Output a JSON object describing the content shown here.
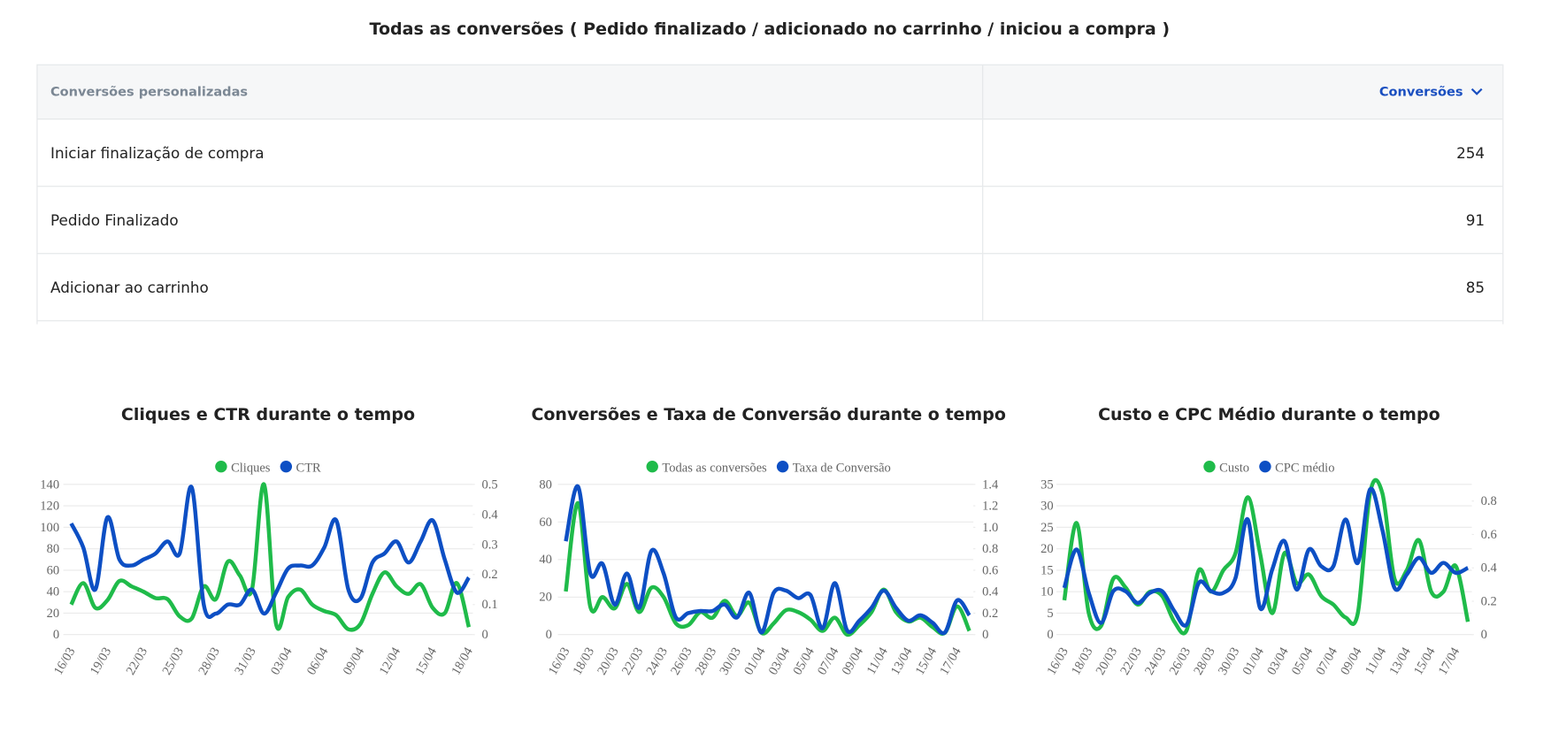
{
  "title": "Todas as conversões ( Pedido finalizado / adicionado no carrinho / iniciou a compra )",
  "table": {
    "columns": [
      "Conversões personalizadas",
      "Conversões"
    ],
    "rows": [
      [
        "Iniciar finalização de compra",
        254
      ],
      [
        "Pedido Finalizado",
        91
      ],
      [
        "Adicionar ao carrinho",
        85
      ]
    ]
  },
  "chart_data": [
    {
      "type": "line",
      "title": "Cliques e CTR durante o tempo",
      "grid": true,
      "legend": "top",
      "categories": [
        "16/03",
        null,
        null,
        "19/03",
        null,
        null,
        "22/03",
        null,
        null,
        "25/03",
        null,
        null,
        "28/03",
        null,
        null,
        "31/03",
        null,
        null,
        "03/04",
        null,
        null,
        "06/04",
        null,
        null,
        "09/04",
        null,
        null,
        "12/04",
        null,
        null,
        "15/04",
        null,
        null,
        "18/04"
      ],
      "ylim": [
        0,
        140
      ],
      "yticks": [
        0,
        20,
        40,
        60,
        80,
        100,
        120,
        140
      ],
      "y2lim": [
        0,
        0.5
      ],
      "y2ticks": [
        0,
        0.1,
        0.2,
        0.3,
        0.4,
        0.5
      ],
      "series": [
        {
          "name": "Cliques",
          "color": "#1fbb4a",
          "values": [
            28,
            48,
            25,
            32,
            50,
            45,
            40,
            34,
            33,
            17,
            15,
            45,
            33,
            68,
            55,
            42,
            140,
            10,
            35,
            42,
            28,
            22,
            18,
            5,
            10,
            38,
            58,
            45,
            38,
            47,
            25,
            20,
            48,
            7
          ]
        },
        {
          "name": "CTR",
          "color": "#0d4fc4",
          "axis": "y2",
          "values": [
            0.37,
            0.29,
            0.15,
            0.39,
            0.25,
            0.23,
            0.25,
            0.27,
            0.31,
            0.27,
            0.49,
            0.1,
            0.07,
            0.1,
            0.1,
            0.15,
            0.07,
            0.14,
            0.22,
            0.23,
            0.23,
            0.29,
            0.38,
            0.15,
            0.12,
            0.24,
            0.27,
            0.31,
            0.24,
            0.31,
            0.38,
            0.25,
            0.14,
            0.19
          ]
        }
      ]
    },
    {
      "type": "line",
      "title": "Conversões e Taxa de Conversão durante o tempo",
      "grid": true,
      "legend": "top",
      "categories": [
        "16/03",
        null,
        "18/03",
        null,
        "20/03",
        null,
        "22/03",
        null,
        "24/03",
        null,
        "26/03",
        null,
        "28/03",
        null,
        "30/03",
        null,
        "01/04",
        null,
        "03/04",
        null,
        "05/04",
        null,
        "07/04",
        null,
        "09/04",
        null,
        "11/04",
        null,
        "13/04",
        null,
        "15/04",
        null,
        "17/04",
        null
      ],
      "ylim": [
        0,
        80
      ],
      "yticks": [
        0,
        20,
        40,
        60,
        80
      ],
      "y2lim": [
        0,
        1.4
      ],
      "y2ticks": [
        0,
        0.2,
        0.4,
        0.6,
        0.8,
        {
          "value": 1,
          "label": "1.0"
        },
        1.2,
        1.4
      ],
      "series": [
        {
          "name": "Todas as conversões",
          "color": "#1fbb4a",
          "values": [
            23,
            70,
            15,
            20,
            14,
            27,
            12,
            25,
            20,
            6,
            5,
            12,
            9,
            18,
            10,
            17,
            1,
            6,
            13,
            12,
            8,
            2,
            9,
            0,
            5,
            12,
            24,
            12,
            7,
            9,
            4,
            1,
            15,
            2
          ]
        },
        {
          "name": "Taxa de Conversão",
          "color": "#0d4fc4",
          "axis": "y2",
          "values": [
            0.87,
            1.38,
            0.57,
            0.66,
            0.28,
            0.57,
            0.25,
            0.78,
            0.57,
            0.16,
            0.2,
            0.22,
            0.22,
            0.28,
            0.16,
            0.39,
            0.02,
            0.39,
            0.41,
            0.34,
            0.37,
            0.06,
            0.48,
            0.04,
            0.13,
            0.25,
            0.41,
            0.25,
            0.13,
            0.18,
            0.11,
            0.02,
            0.32,
            0.18
          ]
        }
      ]
    },
    {
      "type": "line",
      "title": "Custo e CPC Médio durante o tempo",
      "grid": true,
      "legend": "top",
      "categories": [
        "16/03",
        null,
        "18/03",
        null,
        "20/03",
        null,
        "22/03",
        null,
        "24/03",
        null,
        "26/03",
        null,
        "28/03",
        null,
        "30/03",
        null,
        "01/04",
        null,
        "03/04",
        null,
        "05/04",
        null,
        "07/04",
        null,
        "09/04",
        null,
        "11/04",
        null,
        "13/04",
        null,
        "15/04",
        null,
        "17/04",
        null
      ],
      "ylim": [
        0,
        35
      ],
      "yticks": [
        0,
        5,
        10,
        15,
        20,
        25,
        30,
        35
      ],
      "y2lim": [
        0,
        0.9
      ],
      "y2ticks": [
        0,
        0.2,
        0.4,
        0.6,
        0.8
      ],
      "series": [
        {
          "name": "Custo",
          "color": "#1fbb4a",
          "values": [
            8,
            26,
            5,
            2,
            13,
            11,
            7,
            10,
            9,
            3,
            1,
            15,
            10,
            15,
            19,
            32,
            19,
            5,
            19,
            12,
            14,
            9,
            7,
            4,
            5,
            33,
            33,
            13,
            15,
            22,
            10,
            10,
            16,
            3
          ]
        },
        {
          "name": "CPC médio",
          "color": "#0d4fc4",
          "axis": "y2",
          "values": [
            0.28,
            0.51,
            0.25,
            0.07,
            0.26,
            0.26,
            0.19,
            0.25,
            0.26,
            0.14,
            0.06,
            0.31,
            0.26,
            0.25,
            0.34,
            0.69,
            0.16,
            0.39,
            0.56,
            0.27,
            0.51,
            0.41,
            0.41,
            0.69,
            0.43,
            0.87,
            0.63,
            0.28,
            0.36,
            0.46,
            0.37,
            0.43,
            0.37,
            0.4
          ]
        }
      ]
    }
  ]
}
